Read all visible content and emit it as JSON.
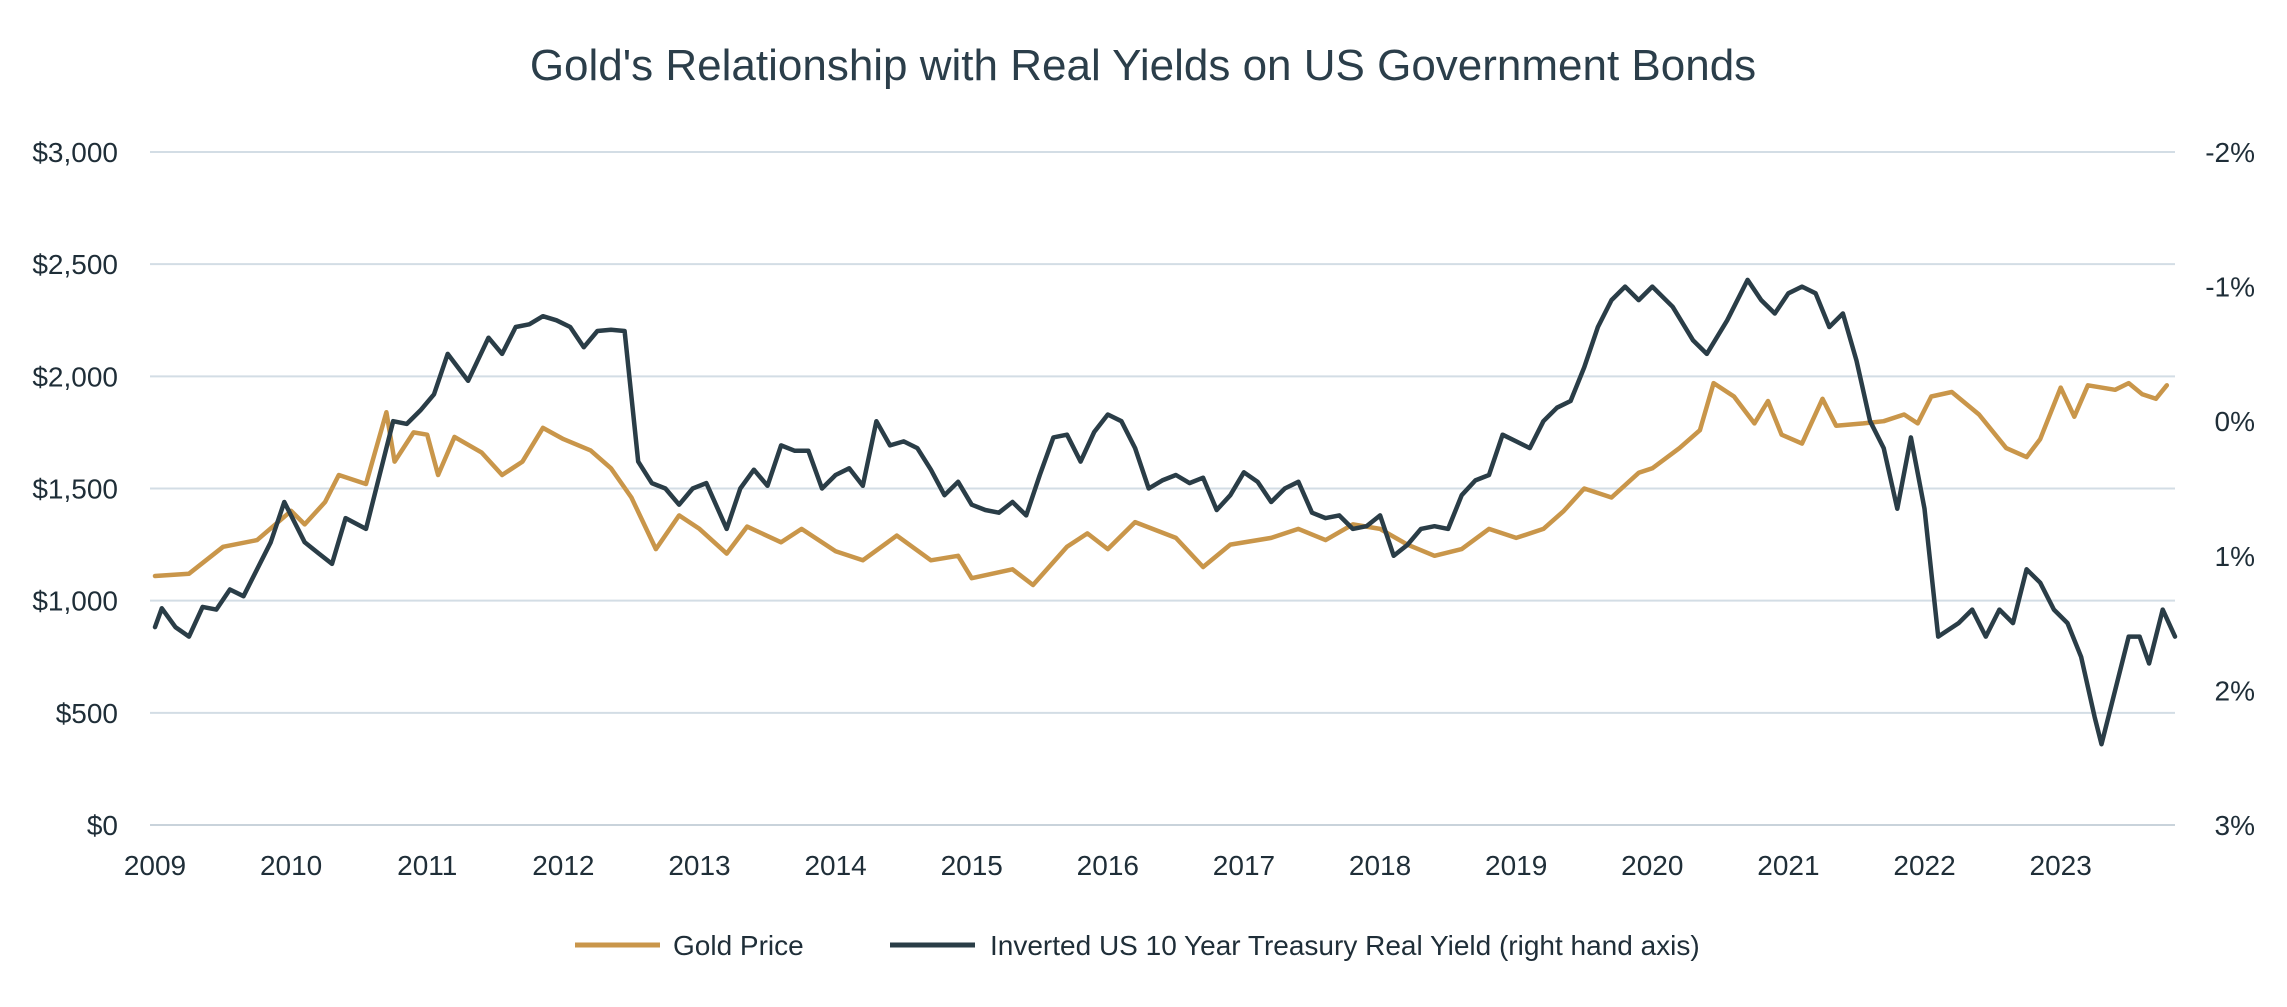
{
  "chart_data": {
    "type": "line",
    "title": "Gold's Relationship with Real Yields on US Government Bonds",
    "x_tick_labels": [
      "2009",
      "2010",
      "2011",
      "2012",
      "2013",
      "2014",
      "2015",
      "2016",
      "2017",
      "2018",
      "2019",
      "2020",
      "2021",
      "2022",
      "2023"
    ],
    "x_range": [
      2009.0,
      2023.84
    ],
    "y_left": {
      "ticks": [
        0,
        500,
        1000,
        1500,
        2000,
        2500,
        3000
      ],
      "tick_labels": [
        "$0",
        "$500",
        "$1,000",
        "$1,500",
        "$2,000",
        "$2,500",
        "$3,000"
      ],
      "range": [
        0,
        3000
      ]
    },
    "y_right": {
      "ticks": [
        3,
        2,
        1,
        0,
        -1,
        -2
      ],
      "tick_labels": [
        "3%",
        "2%",
        "1%",
        "0%",
        "-1%",
        "-2%"
      ],
      "range": [
        3,
        -2
      ]
    },
    "grid": true,
    "legend_position": "bottom",
    "series": [
      {
        "name": "Gold Price",
        "axis": "left",
        "color": "#c9964a",
        "points": [
          [
            2009.0,
            1110
          ],
          [
            2009.25,
            1120
          ],
          [
            2009.5,
            1240
          ],
          [
            2009.75,
            1270
          ],
          [
            2010.0,
            1400
          ],
          [
            2010.1,
            1340
          ],
          [
            2010.25,
            1440
          ],
          [
            2010.35,
            1560
          ],
          [
            2010.55,
            1520
          ],
          [
            2010.7,
            1840
          ],
          [
            2010.76,
            1620
          ],
          [
            2010.9,
            1750
          ],
          [
            2011.0,
            1740
          ],
          [
            2011.08,
            1560
          ],
          [
            2011.2,
            1730
          ],
          [
            2011.4,
            1660
          ],
          [
            2011.55,
            1560
          ],
          [
            2011.7,
            1620
          ],
          [
            2011.85,
            1770
          ],
          [
            2012.0,
            1720
          ],
          [
            2012.2,
            1670
          ],
          [
            2012.35,
            1590
          ],
          [
            2012.5,
            1460
          ],
          [
            2012.68,
            1230
          ],
          [
            2012.85,
            1380
          ],
          [
            2013.0,
            1320
          ],
          [
            2013.2,
            1210
          ],
          [
            2013.35,
            1330
          ],
          [
            2013.6,
            1260
          ],
          [
            2013.75,
            1320
          ],
          [
            2014.0,
            1220
          ],
          [
            2014.2,
            1180
          ],
          [
            2014.45,
            1290
          ],
          [
            2014.7,
            1180
          ],
          [
            2014.9,
            1200
          ],
          [
            2015.0,
            1100
          ],
          [
            2015.3,
            1140
          ],
          [
            2015.45,
            1070
          ],
          [
            2015.7,
            1240
          ],
          [
            2015.85,
            1300
          ],
          [
            2016.0,
            1230
          ],
          [
            2016.2,
            1350
          ],
          [
            2016.5,
            1280
          ],
          [
            2016.7,
            1150
          ],
          [
            2016.9,
            1250
          ],
          [
            2017.2,
            1280
          ],
          [
            2017.4,
            1320
          ],
          [
            2017.6,
            1270
          ],
          [
            2017.8,
            1340
          ],
          [
            2018.0,
            1320
          ],
          [
            2018.2,
            1250
          ],
          [
            2018.4,
            1200
          ],
          [
            2018.6,
            1230
          ],
          [
            2018.8,
            1320
          ],
          [
            2019.0,
            1280
          ],
          [
            2019.2,
            1320
          ],
          [
            2019.35,
            1400
          ],
          [
            2019.5,
            1500
          ],
          [
            2019.7,
            1460
          ],
          [
            2019.9,
            1570
          ],
          [
            2020.0,
            1590
          ],
          [
            2020.2,
            1680
          ],
          [
            2020.35,
            1760
          ],
          [
            2020.45,
            1970
          ],
          [
            2020.6,
            1910
          ],
          [
            2020.75,
            1790
          ],
          [
            2020.85,
            1890
          ],
          [
            2020.95,
            1740
          ],
          [
            2021.1,
            1700
          ],
          [
            2021.25,
            1900
          ],
          [
            2021.35,
            1780
          ],
          [
            2021.55,
            1790
          ],
          [
            2021.7,
            1800
          ],
          [
            2021.85,
            1830
          ],
          [
            2021.95,
            1790
          ],
          [
            2022.05,
            1910
          ],
          [
            2022.2,
            1930
          ],
          [
            2022.4,
            1830
          ],
          [
            2022.6,
            1680
          ],
          [
            2022.75,
            1640
          ],
          [
            2022.85,
            1720
          ],
          [
            2023.0,
            1950
          ],
          [
            2023.1,
            1820
          ],
          [
            2023.2,
            1960
          ],
          [
            2023.4,
            1940
          ],
          [
            2023.5,
            1970
          ],
          [
            2023.6,
            1920
          ],
          [
            2023.7,
            1900
          ],
          [
            2023.78,
            1960
          ]
        ]
      },
      {
        "name": "Inverted US 10 Year Treasury Real Yield (right hand axis)",
        "axis": "right",
        "color": "#2a3d47",
        "points": [
          [
            2009.0,
            1.53
          ],
          [
            2009.05,
            1.39
          ],
          [
            2009.15,
            1.53
          ],
          [
            2009.25,
            1.6
          ],
          [
            2009.35,
            1.38
          ],
          [
            2009.45,
            1.4
          ],
          [
            2009.55,
            1.25
          ],
          [
            2009.65,
            1.3
          ],
          [
            2009.85,
            0.9
          ],
          [
            2009.95,
            0.6
          ],
          [
            2010.1,
            0.9
          ],
          [
            2010.2,
            0.98
          ],
          [
            2010.3,
            1.06
          ],
          [
            2010.4,
            0.72
          ],
          [
            2010.55,
            0.8
          ],
          [
            2010.65,
            0.4
          ],
          [
            2010.75,
            0.0
          ],
          [
            2010.85,
            0.02
          ],
          [
            2010.95,
            -0.08
          ],
          [
            2011.05,
            -0.2
          ],
          [
            2011.15,
            -0.5
          ],
          [
            2011.3,
            -0.3
          ],
          [
            2011.45,
            -0.62
          ],
          [
            2011.55,
            -0.5
          ],
          [
            2011.65,
            -0.7
          ],
          [
            2011.75,
            -0.72
          ],
          [
            2011.85,
            -0.78
          ],
          [
            2011.95,
            -0.75
          ],
          [
            2012.05,
            -0.7
          ],
          [
            2012.15,
            -0.55
          ],
          [
            2012.25,
            -0.67
          ],
          [
            2012.35,
            -0.68
          ],
          [
            2012.45,
            -0.67
          ],
          [
            2012.55,
            0.3
          ],
          [
            2012.65,
            0.46
          ],
          [
            2012.75,
            0.5
          ],
          [
            2012.85,
            0.62
          ],
          [
            2012.95,
            0.5
          ],
          [
            2013.05,
            0.46
          ],
          [
            2013.2,
            0.8
          ],
          [
            2013.3,
            0.5
          ],
          [
            2013.4,
            0.36
          ],
          [
            2013.5,
            0.48
          ],
          [
            2013.6,
            0.18
          ],
          [
            2013.7,
            0.22
          ],
          [
            2013.8,
            0.22
          ],
          [
            2013.9,
            0.5
          ],
          [
            2014.0,
            0.4
          ],
          [
            2014.1,
            0.35
          ],
          [
            2014.2,
            0.48
          ],
          [
            2014.3,
            0.0
          ],
          [
            2014.4,
            0.18
          ],
          [
            2014.5,
            0.15
          ],
          [
            2014.6,
            0.2
          ],
          [
            2014.7,
            0.36
          ],
          [
            2014.8,
            0.55
          ],
          [
            2014.9,
            0.45
          ],
          [
            2015.0,
            0.62
          ],
          [
            2015.1,
            0.66
          ],
          [
            2015.2,
            0.68
          ],
          [
            2015.3,
            0.6
          ],
          [
            2015.4,
            0.7
          ],
          [
            2015.5,
            0.4
          ],
          [
            2015.6,
            0.12
          ],
          [
            2015.7,
            0.1
          ],
          [
            2015.8,
            0.3
          ],
          [
            2015.9,
            0.08
          ],
          [
            2016.0,
            -0.05
          ],
          [
            2016.1,
            0.0
          ],
          [
            2016.2,
            0.2
          ],
          [
            2016.3,
            0.5
          ],
          [
            2016.4,
            0.44
          ],
          [
            2016.5,
            0.4
          ],
          [
            2016.6,
            0.46
          ],
          [
            2016.7,
            0.42
          ],
          [
            2016.8,
            0.66
          ],
          [
            2016.9,
            0.55
          ],
          [
            2017.0,
            0.38
          ],
          [
            2017.1,
            0.45
          ],
          [
            2017.2,
            0.6
          ],
          [
            2017.3,
            0.5
          ],
          [
            2017.4,
            0.45
          ],
          [
            2017.5,
            0.68
          ],
          [
            2017.6,
            0.72
          ],
          [
            2017.7,
            0.7
          ],
          [
            2017.8,
            0.8
          ],
          [
            2017.9,
            0.78
          ],
          [
            2018.0,
            0.7
          ],
          [
            2018.1,
            1.0
          ],
          [
            2018.2,
            0.92
          ],
          [
            2018.3,
            0.8
          ],
          [
            2018.4,
            0.78
          ],
          [
            2018.5,
            0.8
          ],
          [
            2018.6,
            0.55
          ],
          [
            2018.7,
            0.44
          ],
          [
            2018.8,
            0.4
          ],
          [
            2018.9,
            0.1
          ],
          [
            2019.0,
            0.15
          ],
          [
            2019.1,
            0.2
          ],
          [
            2019.2,
            0.0
          ],
          [
            2019.3,
            -0.1
          ],
          [
            2019.4,
            -0.15
          ],
          [
            2019.5,
            -0.4
          ],
          [
            2019.6,
            -0.7
          ],
          [
            2019.7,
            -0.9
          ],
          [
            2019.8,
            -1.0
          ],
          [
            2019.9,
            -0.9
          ],
          [
            2020.0,
            -1.0
          ],
          [
            2020.15,
            -0.85
          ],
          [
            2020.3,
            -0.6
          ],
          [
            2020.4,
            -0.5
          ],
          [
            2020.55,
            -0.75
          ],
          [
            2020.7,
            -1.05
          ],
          [
            2020.8,
            -0.9
          ],
          [
            2020.9,
            -0.8
          ],
          [
            2021.0,
            -0.95
          ],
          [
            2021.1,
            -1.0
          ],
          [
            2021.2,
            -0.95
          ],
          [
            2021.3,
            -0.7
          ],
          [
            2021.4,
            -0.8
          ],
          [
            2021.5,
            -0.45
          ],
          [
            2021.6,
            0.0
          ],
          [
            2021.7,
            0.2
          ],
          [
            2021.8,
            0.65
          ],
          [
            2021.9,
            0.12
          ],
          [
            2022.0,
            0.65
          ],
          [
            2022.1,
            1.6
          ],
          [
            2022.25,
            1.5
          ],
          [
            2022.35,
            1.4
          ],
          [
            2022.45,
            1.6
          ],
          [
            2022.55,
            1.4
          ],
          [
            2022.65,
            1.5
          ],
          [
            2022.75,
            1.1
          ],
          [
            2022.85,
            1.2
          ],
          [
            2022.95,
            1.4
          ],
          [
            2023.05,
            1.5
          ],
          [
            2023.15,
            1.75
          ],
          [
            2023.25,
            2.2
          ],
          [
            2023.3,
            2.4
          ],
          [
            2023.4,
            2.0
          ],
          [
            2023.5,
            1.6
          ],
          [
            2023.58,
            1.6
          ],
          [
            2023.65,
            1.8
          ],
          [
            2023.75,
            1.4
          ],
          [
            2023.84,
            1.6
          ]
        ]
      }
    ]
  }
}
